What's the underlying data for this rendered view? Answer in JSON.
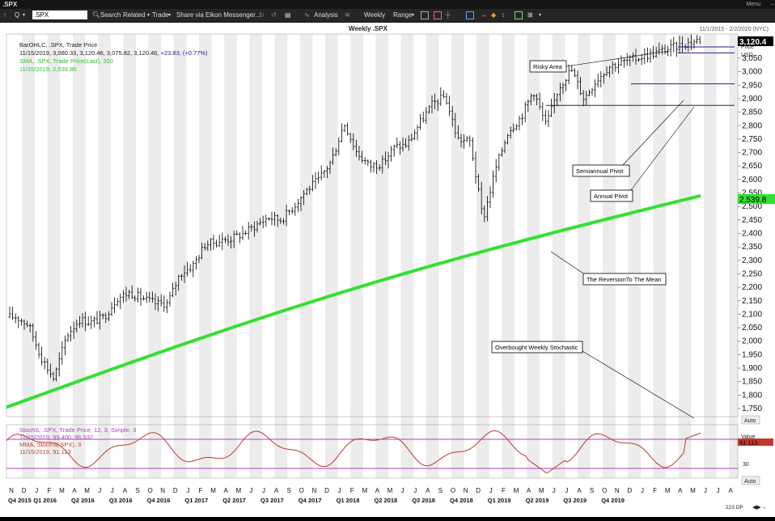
{
  "window": {
    "title": ".SPX",
    "menu_label": "Menu"
  },
  "toolbar": {
    "ticker_value": ".SPX",
    "q_label": "Q",
    "search_label": "Search",
    "related_label": "Related",
    "trade_label": "Trade",
    "share_label": "Share via Eikon Messenger...",
    "analysis_label": "Analysis",
    "interval_label": "Weekly",
    "range_label": "Range"
  },
  "header": {
    "title": "Weekly .SPX",
    "date_range": "11/1/2015 - 2/2/2020 (NYC)"
  },
  "legend": {
    "bar_label": "BarOHLC, .SPX, Trade Price",
    "bar_values": "11/15/2019, 3,080.33, 3,120.46, 3,075.82, 3,120.46, ",
    "bar_change": "+23.83, (+0.77%)",
    "sma_label": "SMA, .SPX, Trade Price(Last), 200",
    "sma_values": "11/15/2019, 2,539.85"
  },
  "stoch_legend": {
    "stoch_label": "StochS, .SPX, Trade Price, 12, 3, Simple, 3",
    "stoch_values": "11/15/2019, 99.400, 96.932",
    "mma_label": "MMA, StochS(.SPX), 3",
    "mma_values": "11/15/2019, 91.113"
  },
  "axis": {
    "price_header": "Price",
    "currency": "USD",
    "value_header": "Value",
    "auto_label": "Auto",
    "price_badge": "3,120.4",
    "sma_badge": "2,539.8",
    "stoch_badge": "91.113",
    "stoch_tick": "30",
    "dp_label": "223 DP"
  },
  "annotations": {
    "risky": "Risky Area",
    "semiannual": "Semiannual Pivot",
    "annual": "Annual Pivot",
    "reversion": "The ReversionTo The Mean",
    "overbought": "Overbought Weekly Stochastic"
  },
  "colors": {
    "sma": "#33e033",
    "stoch": "#c0392b",
    "stoch_line": "#b040c0",
    "pivot": "#1a237e",
    "price_text": "#1a1aa0",
    "legend_green": "#2fbf2f",
    "legend_purple": "#b040c0",
    "legend_red": "#c0392b"
  },
  "chart_data": {
    "type": "ohlc",
    "title": "Weekly .SPX",
    "y_axis": {
      "range": [
        1720,
        3140
      ],
      "ticks": [
        1750,
        1800,
        1850,
        1900,
        1950,
        2000,
        2050,
        2100,
        2150,
        2200,
        2250,
        2300,
        2350,
        2400,
        2450,
        2500,
        2550,
        2600,
        2650,
        2700,
        2750,
        2800,
        2850,
        2900,
        2950,
        3000,
        3050
      ]
    },
    "x_axis": {
      "months": [
        "N",
        "D",
        "J",
        "F",
        "M",
        "A",
        "M",
        "J",
        "J",
        "A",
        "S",
        "O",
        "N",
        "D",
        "J",
        "F",
        "M",
        "A",
        "M",
        "J",
        "J",
        "A",
        "S",
        "O",
        "N",
        "D",
        "J",
        "F",
        "M",
        "A",
        "M",
        "J",
        "J",
        "A",
        "S",
        "O",
        "N",
        "D",
        "J",
        "F",
        "M",
        "A",
        "M",
        "J",
        "J",
        "A",
        "S",
        "O",
        "N",
        "D",
        "J",
        "F",
        "M",
        "A",
        "M",
        "J",
        "J",
        "A",
        "S",
        "O",
        "N",
        "D",
        "J"
      ],
      "quarters": [
        "Q4 2015",
        "Q1 2016",
        "Q2 2016",
        "Q3 2016",
        "Q4 2016",
        "Q1 2017",
        "Q2 2017",
        "Q3 2017",
        "Q4 2017",
        "Q1 2018",
        "Q2 2018",
        "Q3 2018",
        "Q4 2018",
        "Q1 2019",
        "Q2 2019",
        "Q3 2019",
        "Q4 2019"
      ]
    },
    "price_anchors": [
      [
        "2015-11",
        2090
      ],
      [
        "2015-12",
        2060
      ],
      [
        "2016-01",
        1940
      ],
      [
        "2016-02",
        1860
      ],
      [
        "2016-03",
        2020
      ],
      [
        "2016-04",
        2080
      ],
      [
        "2016-05",
        2070
      ],
      [
        "2016-06",
        2090
      ],
      [
        "2016-07",
        2160
      ],
      [
        "2016-08",
        2180
      ],
      [
        "2016-09",
        2160
      ],
      [
        "2016-10",
        2140
      ],
      [
        "2016-11",
        2140
      ],
      [
        "2016-12",
        2250
      ],
      [
        "2017-01",
        2280
      ],
      [
        "2017-02",
        2360
      ],
      [
        "2017-03",
        2370
      ],
      [
        "2017-04",
        2380
      ],
      [
        "2017-05",
        2400
      ],
      [
        "2017-06",
        2430
      ],
      [
        "2017-07",
        2460
      ],
      [
        "2017-08",
        2450
      ],
      [
        "2017-09",
        2500
      ],
      [
        "2017-10",
        2560
      ],
      [
        "2017-11",
        2600
      ],
      [
        "2017-12",
        2670
      ],
      [
        "2018-01",
        2810
      ],
      [
        "2018-02",
        2700
      ],
      [
        "2018-03",
        2650
      ],
      [
        "2018-04",
        2660
      ],
      [
        "2018-05",
        2720
      ],
      [
        "2018-06",
        2730
      ],
      [
        "2018-07",
        2810
      ],
      [
        "2018-08",
        2880
      ],
      [
        "2018-09",
        2910
      ],
      [
        "2018-10",
        2750
      ],
      [
        "2018-11",
        2740
      ],
      [
        "2018-12",
        2450
      ],
      [
        "2019-01",
        2640
      ],
      [
        "2019-02",
        2780
      ],
      [
        "2019-03",
        2830
      ],
      [
        "2019-04",
        2930
      ],
      [
        "2019-05",
        2800
      ],
      [
        "2019-06",
        2940
      ],
      [
        "2019-07",
        3010
      ],
      [
        "2019-08",
        2900
      ],
      [
        "2019-09",
        2970
      ],
      [
        "2019-10",
        3020
      ],
      [
        "2019-11",
        3120.46
      ]
    ],
    "sma_200": {
      "start": 1755,
      "end": 2539.85
    },
    "pivot_lines": [
      2955,
      2875,
      3070
    ],
    "stochastic": {
      "range": [
        0,
        110
      ],
      "bands": [
        80,
        20
      ],
      "tick": 30,
      "last": 91.113
    }
  }
}
